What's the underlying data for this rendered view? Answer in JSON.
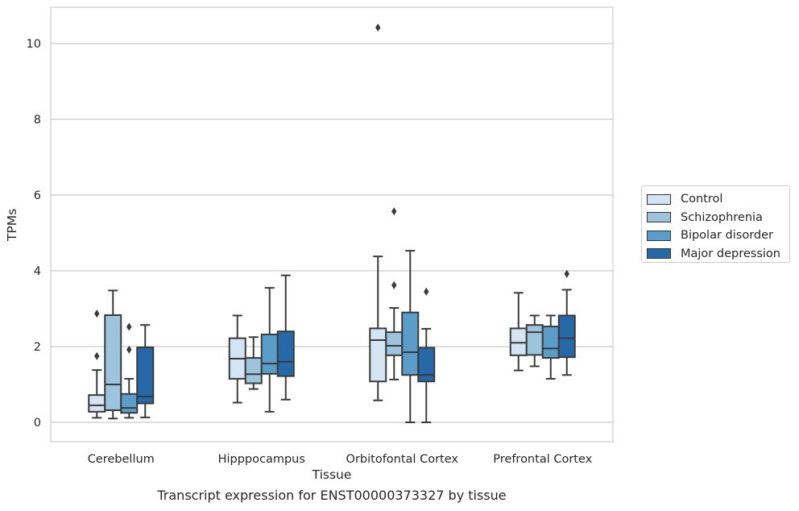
{
  "chart_data": {
    "type": "box",
    "title": "Transcript expression for ENST00000373327 by tissue",
    "xlabel": "Tissue",
    "ylabel": "TPMs",
    "ylim": [
      -0.5,
      10.9
    ],
    "yticks": [
      0,
      2,
      4,
      6,
      8,
      10
    ],
    "grid": "horizontal",
    "legend_position": "right",
    "categories": [
      "Cerebellum",
      "Hipppocampus",
      "Orbitofontal Cortex",
      "Prefrontal Cortex"
    ],
    "series": [
      {
        "name": "Control",
        "color": "#d3e4f3",
        "boxes": [
          {
            "whisker_low": 0.12,
            "q1": 0.28,
            "median": 0.45,
            "q3": 0.72,
            "whisker_high": 1.38,
            "outliers": [
              1.75,
              2.87
            ]
          },
          {
            "whisker_low": 0.52,
            "q1": 1.15,
            "median": 1.68,
            "q3": 2.22,
            "whisker_high": 2.82,
            "outliers": []
          },
          {
            "whisker_low": 0.58,
            "q1": 1.08,
            "median": 2.17,
            "q3": 2.48,
            "whisker_high": 4.38,
            "outliers": [
              10.42
            ]
          },
          {
            "whisker_low": 1.37,
            "q1": 1.77,
            "median": 2.1,
            "q3": 2.48,
            "whisker_high": 3.42,
            "outliers": []
          }
        ]
      },
      {
        "name": "Schizophrenia",
        "color": "#9cc4dd",
        "boxes": [
          {
            "whisker_low": 0.1,
            "q1": 0.32,
            "median": 1.0,
            "q3": 2.83,
            "whisker_high": 3.48,
            "outliers": []
          },
          {
            "whisker_low": 0.88,
            "q1": 1.03,
            "median": 1.27,
            "q3": 1.7,
            "whisker_high": 2.25,
            "outliers": []
          },
          {
            "whisker_low": 1.13,
            "q1": 1.77,
            "median": 2.02,
            "q3": 2.38,
            "whisker_high": 3.02,
            "outliers": [
              3.62,
              5.57
            ]
          },
          {
            "whisker_low": 1.48,
            "q1": 1.78,
            "median": 2.38,
            "q3": 2.57,
            "whisker_high": 2.82,
            "outliers": []
          }
        ]
      },
      {
        "name": "Bipolar disorder",
        "color": "#5a9dc9",
        "boxes": [
          {
            "whisker_low": 0.12,
            "q1": 0.25,
            "median": 0.38,
            "q3": 0.75,
            "whisker_high": 1.15,
            "outliers": [
              1.92,
              2.52
            ]
          },
          {
            "whisker_low": 0.28,
            "q1": 1.28,
            "median": 1.55,
            "q3": 2.32,
            "whisker_high": 3.55,
            "outliers": []
          },
          {
            "whisker_low": 0.0,
            "q1": 1.25,
            "median": 1.85,
            "q3": 2.9,
            "whisker_high": 4.53,
            "outliers": []
          },
          {
            "whisker_low": 1.15,
            "q1": 1.7,
            "median": 1.95,
            "q3": 2.53,
            "whisker_high": 2.82,
            "outliers": []
          }
        ]
      },
      {
        "name": "Major depression",
        "color": "#2669a8",
        "boxes": [
          {
            "whisker_low": 0.13,
            "q1": 0.5,
            "median": 0.68,
            "q3": 1.98,
            "whisker_high": 2.57,
            "outliers": []
          },
          {
            "whisker_low": 0.6,
            "q1": 1.22,
            "median": 1.6,
            "q3": 2.4,
            "whisker_high": 3.88,
            "outliers": []
          },
          {
            "whisker_low": 0.0,
            "q1": 1.08,
            "median": 1.25,
            "q3": 1.97,
            "whisker_high": 2.47,
            "outliers": [
              3.45
            ]
          },
          {
            "whisker_low": 1.25,
            "q1": 1.72,
            "median": 2.22,
            "q3": 2.82,
            "whisker_high": 3.5,
            "outliers": [
              3.92
            ]
          }
        ]
      }
    ]
  }
}
